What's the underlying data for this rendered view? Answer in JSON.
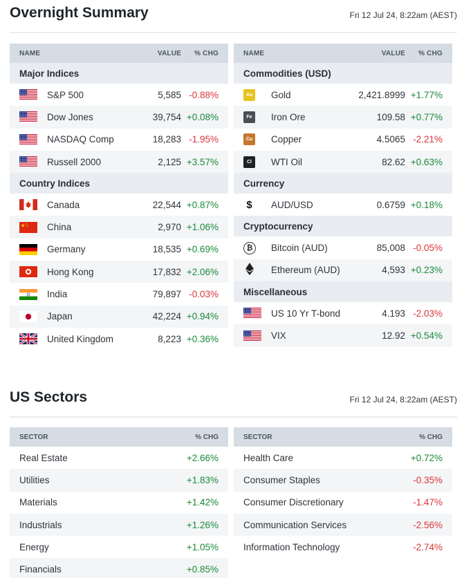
{
  "overnight": {
    "title": "Overnight Summary",
    "timestamp": "Fri 12 Jul 24, 8:22am (AEST)",
    "headers": {
      "name": "NAME",
      "value": "VALUE",
      "chg": "% CHG"
    },
    "left": [
      {
        "group": "Major Indices",
        "rows": [
          {
            "icon": "us-flag-icon",
            "name": "S&P 500",
            "value": "5,585",
            "chg": "-0.88%",
            "dir": "neg"
          },
          {
            "icon": "us-flag-icon",
            "name": "Dow Jones",
            "value": "39,754",
            "chg": "+0.08%",
            "dir": "pos"
          },
          {
            "icon": "us-flag-icon",
            "name": "NASDAQ Comp",
            "value": "18,283",
            "chg": "-1.95%",
            "dir": "neg"
          },
          {
            "icon": "us-flag-icon",
            "name": "Russell 2000",
            "value": "2,125",
            "chg": "+3.57%",
            "dir": "pos"
          }
        ]
      },
      {
        "group": "Country Indices",
        "rows": [
          {
            "icon": "canada-flag-icon",
            "name": "Canada",
            "value": "22,544",
            "chg": "+0.87%",
            "dir": "pos"
          },
          {
            "icon": "china-flag-icon",
            "name": "China",
            "value": "2,970",
            "chg": "+1.06%",
            "dir": "pos"
          },
          {
            "icon": "germany-flag-icon",
            "name": "Germany",
            "value": "18,535",
            "chg": "+0.69%",
            "dir": "pos"
          },
          {
            "icon": "hong-kong-flag-icon",
            "name": "Hong Kong",
            "value": "17,832",
            "chg": "+2.06%",
            "dir": "pos"
          },
          {
            "icon": "india-flag-icon",
            "name": "India",
            "value": "79,897",
            "chg": "-0.03%",
            "dir": "neg"
          },
          {
            "icon": "japan-flag-icon",
            "name": "Japan",
            "value": "42,224",
            "chg": "+0.94%",
            "dir": "pos"
          },
          {
            "icon": "uk-flag-icon",
            "name": "United Kingdom",
            "value": "8,223",
            "chg": "+0.36%",
            "dir": "pos"
          }
        ]
      }
    ],
    "right": [
      {
        "group": "Commodities (USD)",
        "rows": [
          {
            "icon": "gold-badge-icon",
            "badge": "Au",
            "badge_color": "#e8c21e",
            "name": "Gold",
            "value": "2,421.8999",
            "chg": "+1.77%",
            "dir": "pos"
          },
          {
            "icon": "iron-ore-badge-icon",
            "badge": "Fe",
            "badge_color": "#4a4f55",
            "name": "Iron Ore",
            "value": "109.58",
            "chg": "+0.77%",
            "dir": "pos"
          },
          {
            "icon": "copper-badge-icon",
            "badge": "Cu",
            "badge_color": "#c4782e",
            "name": "Copper",
            "value": "4.5065",
            "chg": "-2.21%",
            "dir": "neg"
          },
          {
            "icon": "wti-oil-badge-icon",
            "badge": "Cl",
            "badge_color": "#1d2126",
            "name": "WTI Oil",
            "value": "82.62",
            "chg": "+0.63%",
            "dir": "pos"
          }
        ]
      },
      {
        "group": "Currency",
        "rows": [
          {
            "icon": "dollar-icon",
            "glyph": "$",
            "name": "AUD/USD",
            "value": "0.6759",
            "chg": "+0.18%",
            "dir": "pos"
          }
        ]
      },
      {
        "group": "Cryptocurrency",
        "rows": [
          {
            "icon": "bitcoin-icon",
            "glyph": "₿",
            "name": "Bitcoin (AUD)",
            "value": "85,008",
            "chg": "-0.05%",
            "dir": "neg"
          },
          {
            "icon": "ethereum-icon",
            "glyph": "◆",
            "name": "Ethereum (AUD)",
            "value": "4,593",
            "chg": "+0.23%",
            "dir": "pos"
          }
        ]
      },
      {
        "group": "Miscellaneous",
        "rows": [
          {
            "icon": "us-flag-icon",
            "name": "US 10 Yr T-bond",
            "value": "4.193",
            "chg": "-2.03%",
            "dir": "neg"
          },
          {
            "icon": "us-flag-icon",
            "name": "VIX",
            "value": "12.92",
            "chg": "+0.54%",
            "dir": "pos"
          }
        ]
      }
    ]
  },
  "sectors": {
    "title": "US Sectors",
    "timestamp": "Fri 12 Jul 24, 8:22am (AEST)",
    "headers": {
      "name": "SECTOR",
      "chg": "% CHG"
    },
    "left": [
      {
        "name": "Real Estate",
        "chg": "+2.66%",
        "dir": "pos"
      },
      {
        "name": "Utilities",
        "chg": "+1.83%",
        "dir": "pos"
      },
      {
        "name": "Materials",
        "chg": "+1.42%",
        "dir": "pos"
      },
      {
        "name": "Industrials",
        "chg": "+1.26%",
        "dir": "pos"
      },
      {
        "name": "Energy",
        "chg": "+1.05%",
        "dir": "pos"
      },
      {
        "name": "Financials",
        "chg": "+0.85%",
        "dir": "pos"
      }
    ],
    "right": [
      {
        "name": "Health Care",
        "chg": "+0.72%",
        "dir": "pos"
      },
      {
        "name": "Consumer Staples",
        "chg": "-0.35%",
        "dir": "neg"
      },
      {
        "name": "Consumer Discretionary",
        "chg": "-1.47%",
        "dir": "neg"
      },
      {
        "name": "Communication Services",
        "chg": "-2.56%",
        "dir": "neg"
      },
      {
        "name": "Information Technology",
        "chg": "-2.74%",
        "dir": "neg"
      }
    ]
  },
  "colors": {
    "positive": "#1b8a3a",
    "negative": "#d9363a",
    "header_bg": "#d5dce3",
    "group_bg": "#e9edf1"
  }
}
